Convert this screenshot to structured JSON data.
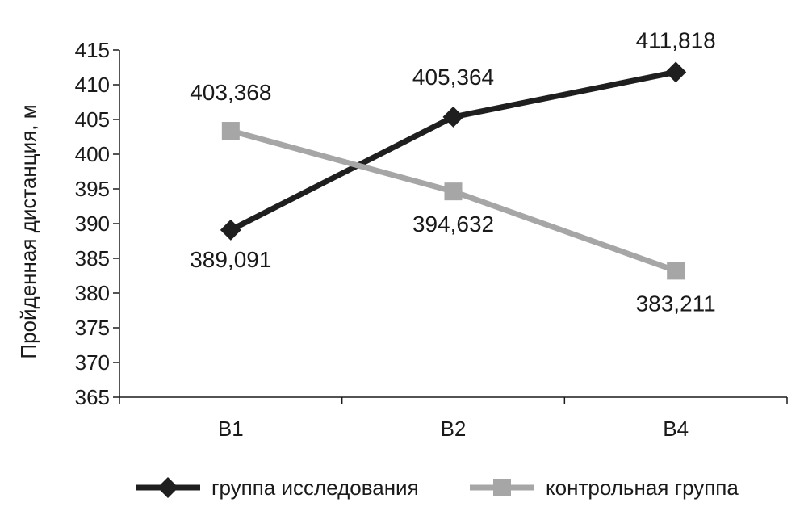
{
  "chart_data": {
    "type": "line",
    "title": "",
    "xlabel": "",
    "ylabel": "Пройденная дистанция, м",
    "categories": [
      "B1",
      "B2",
      "B4"
    ],
    "ylim": [
      365,
      415
    ],
    "yticks": [
      365,
      370,
      375,
      380,
      385,
      390,
      395,
      400,
      405,
      410,
      415
    ],
    "grid": false,
    "legend_position": "bottom",
    "series": [
      {
        "name": "группа исследования",
        "values": [
          389.091,
          405.364,
          411.818
        ],
        "labels": [
          "389,091",
          "405,364",
          "411,818"
        ],
        "color": "#1f1f1f",
        "marker": "diamond"
      },
      {
        "name": "контрольная группа",
        "values": [
          403.368,
          394.632,
          383.211
        ],
        "labels": [
          "403,368",
          "394,632",
          "383,211"
        ],
        "color": "#a6a6a6",
        "marker": "square"
      }
    ]
  }
}
